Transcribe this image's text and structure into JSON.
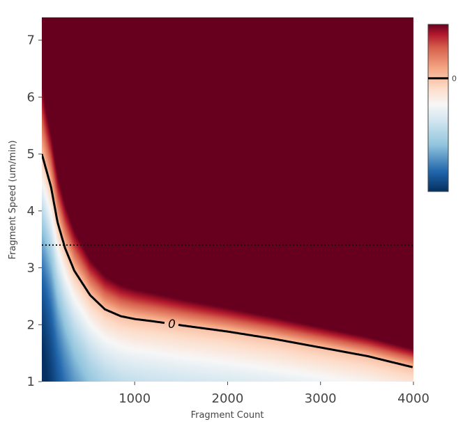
{
  "chart_data": {
    "type": "heatmap",
    "title": "",
    "xlabel": "Fragment Count",
    "ylabel": "Fragment Speed (um/min)",
    "xlim": [
      1,
      4000
    ],
    "ylim": [
      1,
      7.4
    ],
    "x_ticks": [
      1000,
      2000,
      3000,
      4000
    ],
    "x_tick_labels": [
      "1000",
      "2000",
      "3000",
      "4000"
    ],
    "y_ticks": [
      1,
      2,
      3,
      4,
      5,
      6,
      7
    ],
    "y_tick_labels": [
      "1",
      "2",
      "3",
      "4",
      "5",
      "6",
      "7"
    ],
    "colorscale": "RdBu (reversed: blue = negative, white = 0, dark red = positive)",
    "colorbar": {
      "labels": [
        "0"
      ],
      "range_min": -2.1,
      "range_max": 1.0,
      "zero_position_label": "0"
    },
    "contour": {
      "level": 0,
      "label": "0",
      "points": [
        [
          1,
          5.0
        ],
        [
          100,
          4.42
        ],
        [
          170,
          3.8
        ],
        [
          250,
          3.35
        ],
        [
          350,
          2.95
        ],
        [
          520,
          2.52
        ],
        [
          680,
          2.27
        ],
        [
          850,
          2.15
        ],
        [
          1000,
          2.1
        ],
        [
          1200,
          2.06
        ],
        [
          1500,
          1.99
        ],
        [
          2000,
          1.88
        ],
        [
          2500,
          1.75
        ],
        [
          3000,
          1.6
        ],
        [
          3500,
          1.45
        ],
        [
          4000,
          1.25
        ]
      ]
    },
    "reference_line": {
      "y": 3.4,
      "style": "dotted"
    },
    "grid": false,
    "colors": {
      "deep_blue": "#053061",
      "blue": "#2166ac",
      "light_blue": "#92c5de",
      "white": "#f7f7f7",
      "salmon": "#f4a582",
      "red": "#b2182b",
      "dark_red": "#67001f",
      "contour_line": "#000000",
      "tick_text": "#444444"
    }
  }
}
